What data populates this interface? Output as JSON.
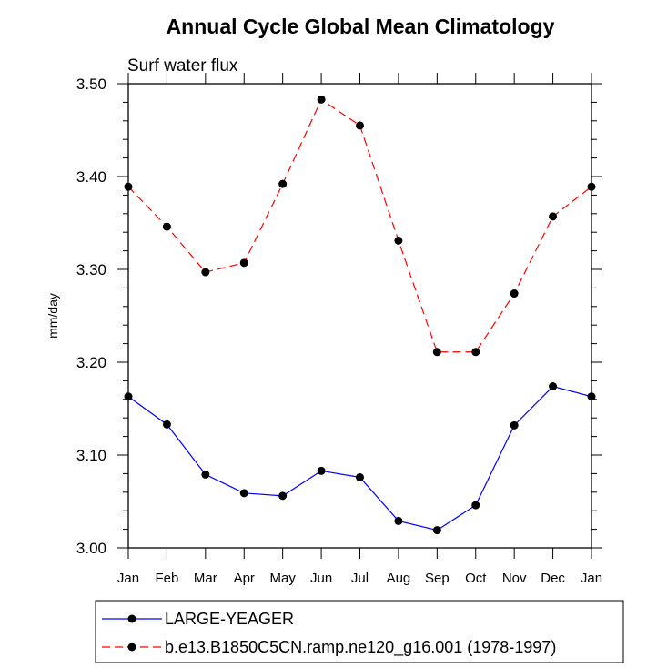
{
  "chart_data": {
    "type": "line",
    "title": "Annual Cycle Global Mean Climatology",
    "subtitle": "Surf water flux",
    "ylabel": "mm/day",
    "xlabel": "",
    "categories": [
      "Jan",
      "Feb",
      "Mar",
      "Apr",
      "May",
      "Jun",
      "Jul",
      "Aug",
      "Sep",
      "Oct",
      "Nov",
      "Dec",
      "Jan"
    ],
    "ylim": [
      3.0,
      3.5
    ],
    "yticks": [
      "3.00",
      "3.10",
      "3.20",
      "3.30",
      "3.40",
      "3.50"
    ],
    "ytick_values": [
      3.0,
      3.1,
      3.2,
      3.3,
      3.4,
      3.5
    ],
    "grid": false,
    "legend_position": "bottom",
    "series": [
      {
        "name": "LARGE-YEAGER",
        "color": "#0000ff",
        "style": "solid",
        "values": [
          3.163,
          3.133,
          3.079,
          3.059,
          3.056,
          3.083,
          3.076,
          3.029,
          3.019,
          3.046,
          3.132,
          3.174,
          3.163
        ]
      },
      {
        "name": "b.e13.B1850C5CN.ramp.ne120_g16.001 (1978-1997)",
        "color": "#ff0000",
        "style": "dashed",
        "values": [
          3.389,
          3.346,
          3.297,
          3.307,
          3.392,
          3.483,
          3.455,
          3.331,
          3.211,
          3.211,
          3.274,
          3.357,
          3.389
        ]
      }
    ]
  }
}
